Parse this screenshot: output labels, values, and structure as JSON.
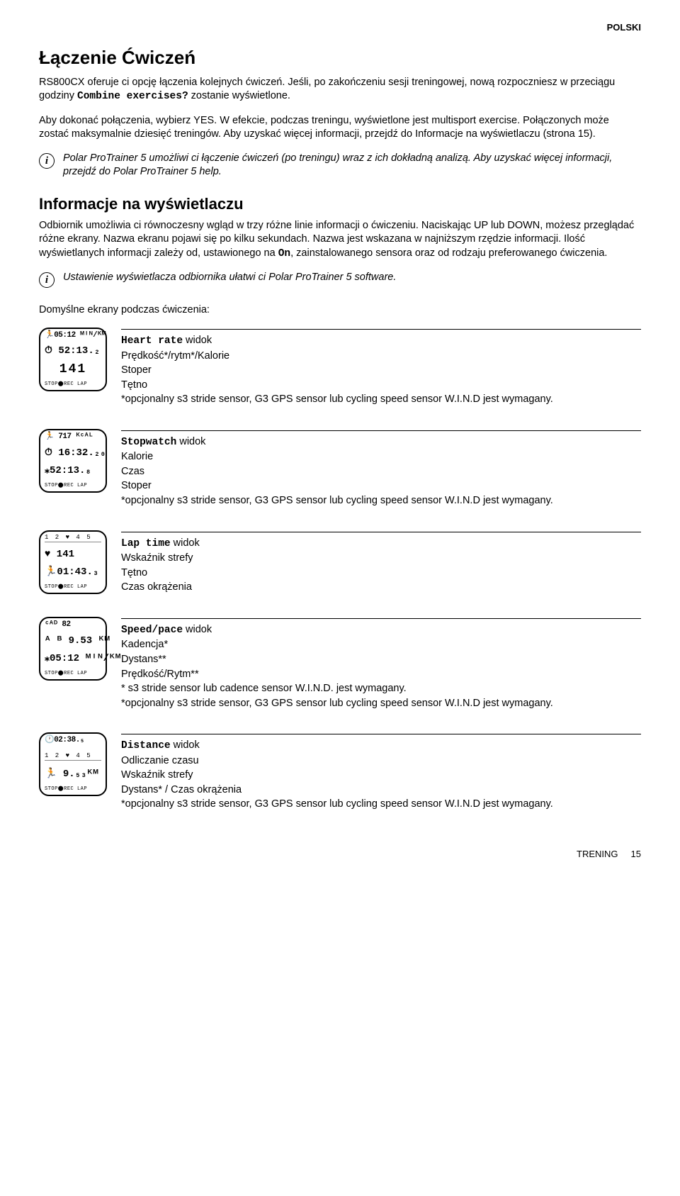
{
  "language_tag": "POLSKI",
  "section1": {
    "heading": "Łączenie Ćwiczeń",
    "p1_a": "RS800CX oferuje ci opcję łączenia kolejnych ćwiczeń. Jeśli, po zakończeniu sesji treningowej, nową rozpoczniesz w przeciągu godziny ",
    "p1_mono": "Combine exercises?",
    "p1_b": " zostanie wyświetlone.",
    "p2": "Aby dokonać połączenia, wybierz YES. W efekcie, podczas treningu, wyświetlone jest multisport exercise. Połączonych może zostać maksymalnie dziesięć treningów. Aby uzyskać więcej informacji, przejdź do Informacje na wyświetlaczu (strona 15).",
    "info1": "Polar ProTrainer 5 umożliwi ci łączenie ćwiczeń (po treningu) wraz z ich dokładną analizą. Aby uzyskać więcej informacji, przejdź do Polar ProTrainer 5 help."
  },
  "section2": {
    "heading": "Informacje na wyświetlaczu",
    "p1_a": "Odbiornik umożliwia ci równoczesny wgląd w trzy różne linie informacji o ćwiczeniu. Naciskając UP lub DOWN, możesz przeglądać różne ekrany. Nazwa ekranu pojawi się po kilku sekundach. Nazwa jest wskazana w najniższym rzędzie informacji. Ilość wyświetlanych informacji zależy od, ustawionego na ",
    "p1_mono": "On",
    "p1_b": ", zainstalowanego sensora oraz od rodzaju preferowanego ćwiczenia.",
    "info2": "Ustawienie wyświetlacza odbiornika ułatwi ci Polar ProTrainer 5 software.",
    "subheading": "Domyślne ekrany podczas ćwiczenia:"
  },
  "screens": [
    {
      "device": {
        "l1": "🏃05:12 ᴹᴵᴺ/ᴷᴹ",
        "l2": "⏱ 52:13.₂",
        "l3_big": "141",
        "l4": "STOP⬤REC LAP"
      },
      "title_mono": "Heart rate",
      "title_tail": " widok",
      "lines": [
        "Prędkość*/rytm*/Kalorie",
        "Stoper",
        "Tętno",
        "*opcjonalny s3 stride sensor, G3 GPS sensor lub cycling speed sensor W.I.N.D jest wymagany."
      ]
    },
    {
      "device": {
        "l1": "🏃 717    ᴷᶜᴬᴸ",
        "l2": "⏱ 16:32.₂₀",
        "l3_med": "⁎52:13.₈",
        "l4": "STOP⬤REC LAP"
      },
      "title_mono": "Stopwatch",
      "title_tail": " widok",
      "lines": [
        "Kalorie",
        "Czas",
        "Stoper",
        "*opcjonalny s3 stride sensor, G3 GPS sensor lub cycling speed sensor W.I.N.D jest wymagany."
      ]
    },
    {
      "device": {
        "zones": "1 2 ♥ 4 5",
        "l2": "♥ 141",
        "l3_med": "🏃01:43.₃",
        "l4": "STOP⬤REC LAP"
      },
      "title_mono": "Lap time",
      "title_tail": " widok",
      "lines": [
        "Wskaźnik strefy",
        "Tętno",
        "Czas okrążenia"
      ]
    },
    {
      "device": {
        "l1": "ᶜᴬᴰ  82",
        "l2": "ᴬ ᴮ 9.53 ᴷᴹ",
        "l3_med": "⁎05:12 ᴹᴵᴺ/ᴷᴹ",
        "l4": "STOP⬤REC LAP"
      },
      "title_mono": "Speed/pace",
      "title_tail": " widok",
      "lines": [
        "Kadencja*",
        "Dystans**",
        "Prędkość/Rytm**",
        "* s3 stride sensor lub cadence sensor W.I.N.D. jest wymagany.",
        "*opcjonalny s3 stride sensor, G3 GPS sensor lub cycling speed sensor W.I.N.D jest wymagany."
      ]
    },
    {
      "device": {
        "l1": "🕐02:38.₅",
        "zones": "1 2 ♥ 4 5",
        "l3_med": "🏃  9.₅₃ᴷᴹ",
        "l4": "STOP⬤REC LAP"
      },
      "title_mono": "Distance",
      "title_tail": " widok",
      "lines": [
        "Odliczanie czasu",
        "Wskaźnik strefy",
        "Dystans* / Czas okrążenia",
        "*opcjonalny s3 stride sensor, G3 GPS sensor lub cycling speed sensor W.I.N.D jest wymagany."
      ]
    }
  ],
  "footer": {
    "section": "TRENING",
    "page": "15"
  }
}
